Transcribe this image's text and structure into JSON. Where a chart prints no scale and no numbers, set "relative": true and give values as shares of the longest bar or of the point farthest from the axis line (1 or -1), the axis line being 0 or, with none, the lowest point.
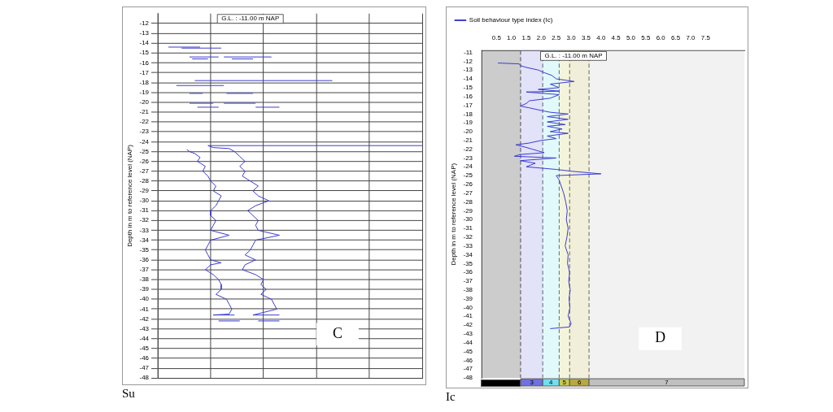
{
  "chart_data": [
    {
      "type": "line",
      "orientation": "horizontal",
      "relative": true,
      "tick_labels": "y",
      "xlabel": "Su",
      "ylabel": "Depth in m to reference level (NAP)",
      "ylim": [
        -48,
        -11
      ],
      "yticks": [
        -12,
        -13,
        -14,
        -15,
        -16,
        -17,
        -18,
        -19,
        -20,
        -21,
        -22,
        -23,
        -24,
        -25,
        -26,
        -27,
        -28,
        -29,
        -30,
        -31,
        -32,
        -33,
        -34,
        -35,
        -36,
        -37,
        -38,
        -39,
        -40,
        -41,
        -42,
        -43,
        -44,
        -45,
        -46,
        -47,
        -48
      ],
      "grid": true,
      "legend": false,
      "marker": "none",
      "line_style": "solid",
      "annotations": [
        "G.L. : -11.00 m NAP",
        "C"
      ],
      "series": [
        {
          "color": "#3a3acf",
          "values": [
            0.04,
            0.16,
            null,
            0.09,
            0.24,
            null,
            0.12,
            0.23,
            null,
            0.13,
            0.19,
            null,
            0.14,
            0.29,
            null,
            0.07,
            0.25,
            null,
            0.12,
            0.17,
            null,
            0.12,
            0.21,
            null,
            0.15,
            0.23,
            null,
            0.11,
            0.12,
            0.14,
            0.16,
            0.15,
            0.18,
            0.17,
            0.19,
            0.2,
            0.22,
            0.21,
            0.24,
            0.23,
            0.22,
            0.2,
            0.2,
            0.22,
            0.21,
            0.2,
            0.27,
            0.2,
            0.19,
            0.18,
            0.19,
            0.2,
            0.24,
            0.2,
            0.18,
            0.21,
            0.23,
            0.24,
            0.24,
            0.22,
            0.26,
            0.27,
            0.28,
            0.27,
            0.21,
            0.29,
            null,
            0.23,
            0.31
          ],
          "x": [
            -14.4,
            -14.4,
            null,
            -14.5,
            -14.5,
            null,
            -15.4,
            -15.4,
            null,
            -15.6,
            -15.6,
            null,
            -17.8,
            -17.8,
            null,
            -18.3,
            -18.3,
            null,
            -19.1,
            -19.1,
            null,
            -20.1,
            -20.1,
            null,
            -20.5,
            -20.5,
            null,
            -24.8,
            -25.0,
            -25.2,
            -25.6,
            -26,
            -26.5,
            -27,
            -27.5,
            -28,
            -28.5,
            -29,
            -29.5,
            -30,
            -30.5,
            -31,
            -31.5,
            -32,
            -32.5,
            -33,
            -33.5,
            -34,
            -34.5,
            -35,
            -35.5,
            -36,
            -36.3,
            -36.5,
            -37,
            -37.5,
            -38,
            -38.5,
            -39,
            -39.5,
            -40,
            -40.5,
            -41,
            -41.5,
            -41.6,
            -41.6,
            null,
            -42.2,
            -42.2
          ]
        },
        {
          "color": "#3a3acf",
          "values": [
            0.25,
            0.43,
            null,
            0.28,
            0.36,
            null,
            0.29,
            0.66,
            null,
            0.26,
            0.36,
            null,
            0.25,
            0.37,
            null,
            0.37,
            0.46,
            null,
            1.0,
            0.19,
            0.21,
            0.27,
            0.29,
            0.31,
            0.33,
            0.31,
            0.33,
            0.32,
            0.35,
            0.38,
            0.36,
            0.38,
            0.42,
            0.37,
            0.34,
            0.36,
            0.38,
            0.37,
            0.38,
            0.46,
            0.37,
            0.36,
            0.35,
            0.33,
            0.37,
            0.33,
            0.32,
            0.37,
            0.4,
            0.39,
            0.41,
            0.39,
            0.43,
            0.44,
            0.45,
            0.36,
            0.46,
            null,
            0.38,
            0.46
          ],
          "x": [
            -15.4,
            -15.4,
            null,
            -15.6,
            -15.6,
            null,
            -17.8,
            -17.8,
            null,
            -19.1,
            -19.1,
            null,
            -20.1,
            -20.1,
            null,
            -20.5,
            -20.5,
            null,
            -24.4,
            -24.4,
            -24.6,
            -24.7,
            -25,
            -25.5,
            -26,
            -26.5,
            -27,
            -27.5,
            -28,
            -28.5,
            -29,
            -29.5,
            -30,
            -30.5,
            -31,
            -31.5,
            -32,
            -32.5,
            -33,
            -33.5,
            -34,
            -34.5,
            -35,
            -35.5,
            -36,
            -36.5,
            -37,
            -37.5,
            -38,
            -38.5,
            -39,
            -39.5,
            -40,
            -40.5,
            -41,
            -41.6,
            -41.6,
            null,
            -42.2,
            -42.2
          ]
        }
      ]
    },
    {
      "type": "line",
      "xlabel": "Ic",
      "ylabel": "Depth in m to reference level (NAP)",
      "xlim": [
        0,
        8.8
      ],
      "xticks": [
        0.5,
        {
          "value": 1,
          "label": "1.0"
        },
        1.5,
        {
          "value": 2,
          "label": "2.0"
        },
        2.5,
        {
          "value": 3,
          "label": "3.0"
        },
        3.5,
        {
          "value": 4,
          "label": "4.0"
        },
        4.5,
        {
          "value": 5,
          "label": "5.0"
        },
        5.5,
        {
          "value": 6,
          "label": "6.0"
        },
        6.5,
        {
          "value": 7,
          "label": "7.0"
        },
        7.5
      ],
      "ylim": [
        -48,
        -10.8
      ],
      "yticks": [
        -11,
        -12,
        -13,
        -14,
        -15,
        -16,
        -17,
        -18,
        -19,
        -20,
        -21,
        -22,
        -23,
        -24,
        -25,
        -26,
        -27,
        -28,
        -29,
        -30,
        -31,
        -32,
        -33,
        -34,
        -35,
        -36,
        -37,
        -38,
        -39,
        -40,
        -41,
        -42,
        -43,
        -44,
        -45,
        -46,
        -47,
        -48
      ],
      "grid": false,
      "legend": "top left",
      "marker": "none",
      "line_style": "solid",
      "annotations": [
        "G.L. : -11.00 m NAP",
        "D"
      ],
      "ref_lines": [
        {
          "axis": "x",
          "value": 1.31,
          "line_style": "dashed",
          "color": "#555555"
        },
        {
          "axis": "x",
          "value": 2.05,
          "line_style": "dashed",
          "color": "#555555"
        },
        {
          "axis": "x",
          "value": 2.6,
          "line_style": "dashed",
          "color": "#555555"
        },
        {
          "axis": "x",
          "value": 2.95,
          "line_style": "dashed",
          "color": "#555555"
        },
        {
          "axis": "x",
          "value": 3.6,
          "line_style": "dashed",
          "color": "#555555"
        }
      ],
      "bands": [
        {
          "axis": "x",
          "from": 0,
          "to": 1.31,
          "label": null,
          "color": "#000000"
        },
        {
          "axis": "x",
          "from": 1.31,
          "to": 2.05,
          "label": "3",
          "color": "#7070e0"
        },
        {
          "axis": "x",
          "from": 2.05,
          "to": 2.6,
          "label": "4",
          "color": "#70e0f0"
        },
        {
          "axis": "x",
          "from": 2.6,
          "to": 2.95,
          "label": "5",
          "color": "#c8c850"
        },
        {
          "axis": "x",
          "from": 2.95,
          "to": 3.6,
          "label": "6",
          "color": "#b8a840"
        },
        {
          "axis": "x",
          "from": 3.6,
          "to": 8.8,
          "label": "7",
          "color": "#c0c0c0"
        }
      ],
      "series": [
        {
          "name": "Soil behaviour type index (Ic)",
          "color": "#3a3acf",
          "x": [
            0.55,
            1.26,
            1.3,
            1.5,
            1.9,
            2.1,
            2.35,
            2.5,
            3.1,
            2.3,
            2.6,
            1.9,
            2.6,
            1.5,
            2.6,
            2.3,
            1.6,
            1.5,
            1.3,
            1.6,
            2.0,
            2.3,
            2.9,
            2.2,
            2.9,
            2.2,
            2.8,
            2.2,
            2.7,
            2.3,
            2.9,
            2.2,
            2.5,
            2.0,
            1.6,
            1.15,
            1.5,
            1.7,
            2.1,
            1.3,
            1.1,
            2.5,
            1.3,
            1.8,
            1.5,
            2.5,
            3.0,
            4.0,
            2.5,
            2.6,
            2.65,
            2.75,
            2.82,
            2.87,
            2.84,
            2.9,
            2.86,
            2.8,
            2.9,
            2.88,
            2.95,
            2.92,
            2.97,
            2.93,
            2.96,
            2.9,
            3.0,
            2.95,
            2.3
          ],
          "values": [
            -12.2,
            -12.3,
            -12.5,
            -12.7,
            -13,
            -13.3,
            -13.6,
            -14,
            -14.3,
            -14.6,
            -15,
            -15.2,
            -15.4,
            -15.5,
            -15.8,
            -16.2,
            -16.5,
            -16.8,
            -17.1,
            -17.3,
            -17.6,
            -17.8,
            -18,
            -18.3,
            -18.6,
            -18.9,
            -19.2,
            -19.4,
            -19.7,
            -20,
            -20.2,
            -20.5,
            -20.8,
            -21,
            -21.3,
            -21.5,
            -21.8,
            -22,
            -22.4,
            -22.6,
            -22.8,
            -23,
            -23.3,
            -23.6,
            -24,
            -24.3,
            -24.5,
            -24.8,
            -25,
            -25.5,
            -26,
            -27,
            -28,
            -29,
            -30,
            -31,
            -32,
            -33,
            -34,
            -35,
            -36,
            -37,
            -38,
            -39,
            -40,
            -41,
            -41.8,
            -42.2,
            -42.4
          ]
        }
      ]
    }
  ]
}
